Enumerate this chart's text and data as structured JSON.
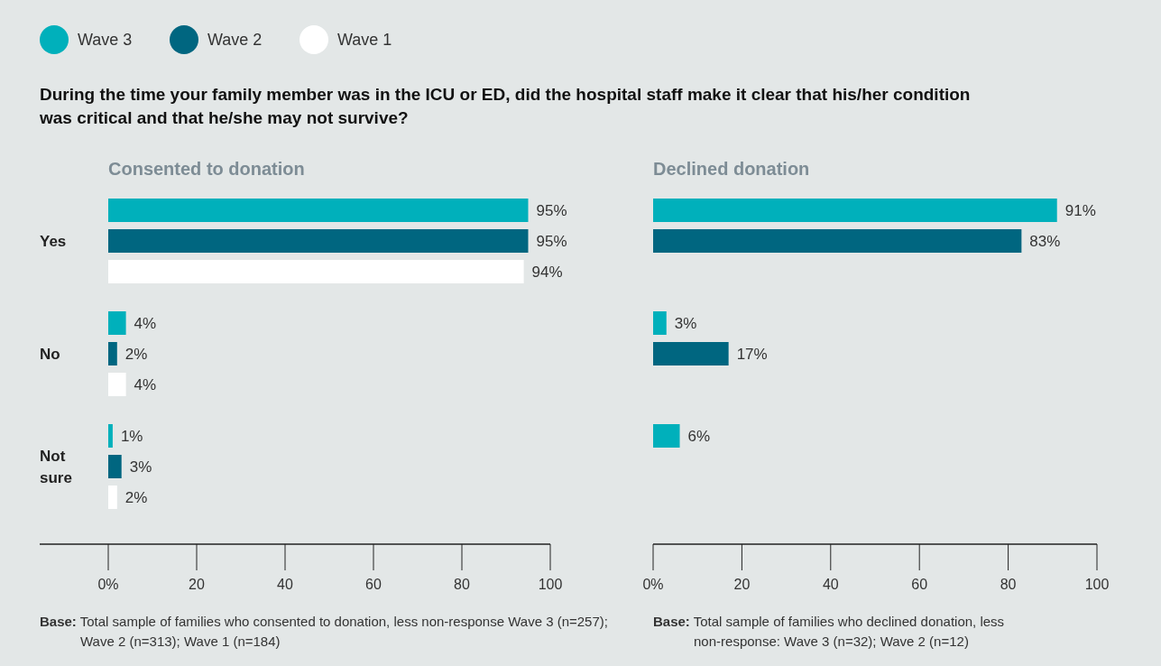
{
  "chart_data": [
    {
      "type": "bar",
      "orientation": "horizontal",
      "title": "During the time your family member was in the ICU or ED, did the hospital staff make it clear that his/her condition was critical and that he/she may not survive?",
      "subtitle": "Consented to donation",
      "categories": [
        "Yes",
        "No",
        "Not sure"
      ],
      "legend": "top left",
      "xlim": [
        0,
        100
      ],
      "xticks": [
        {
          "value": 0,
          "label": "0%"
        },
        20,
        40,
        60,
        80,
        100
      ],
      "series": [
        {
          "name": "Wave 3",
          "color": "#00b0bb",
          "values": [
            95,
            4,
            1
          ],
          "value_labels": [
            "95%",
            "4%",
            "1%"
          ]
        },
        {
          "name": "Wave 2",
          "color": "#006680",
          "values": [
            95,
            2,
            3
          ],
          "value_labels": [
            "95%",
            "2%",
            "3%"
          ]
        },
        {
          "name": "Wave 1",
          "color": "#ffffff",
          "values": [
            94,
            4,
            2
          ],
          "value_labels": [
            "94%",
            "4%",
            "2%"
          ]
        }
      ],
      "annotations": [
        "Base: Total sample of families who consented to donation, less non-response Wave 3 (n=257); Wave 2 (n=313); Wave 1 (n=184)"
      ]
    },
    {
      "type": "bar",
      "orientation": "horizontal",
      "title": "Declined donation",
      "categories": [
        null,
        null,
        null
      ],
      "tick_labels": "x",
      "xlim": [
        0,
        100
      ],
      "xticks": [
        {
          "value": 0,
          "label": "0%"
        },
        20,
        40,
        60,
        80,
        100
      ],
      "series": [
        {
          "color": "#00b0bb",
          "values": [
            91,
            3,
            6
          ],
          "value_labels": [
            "91%",
            "3%",
            "6%"
          ]
        },
        {
          "color": "#006680",
          "values": [
            83,
            17,
            null
          ],
          "value_labels": [
            "83%",
            "17%",
            null
          ]
        }
      ],
      "annotations": [
        "Base: Total sample of families who declined donation, less non-response: Wave 3 (n=32); Wave 2 (n=12)"
      ]
    }
  ]
}
